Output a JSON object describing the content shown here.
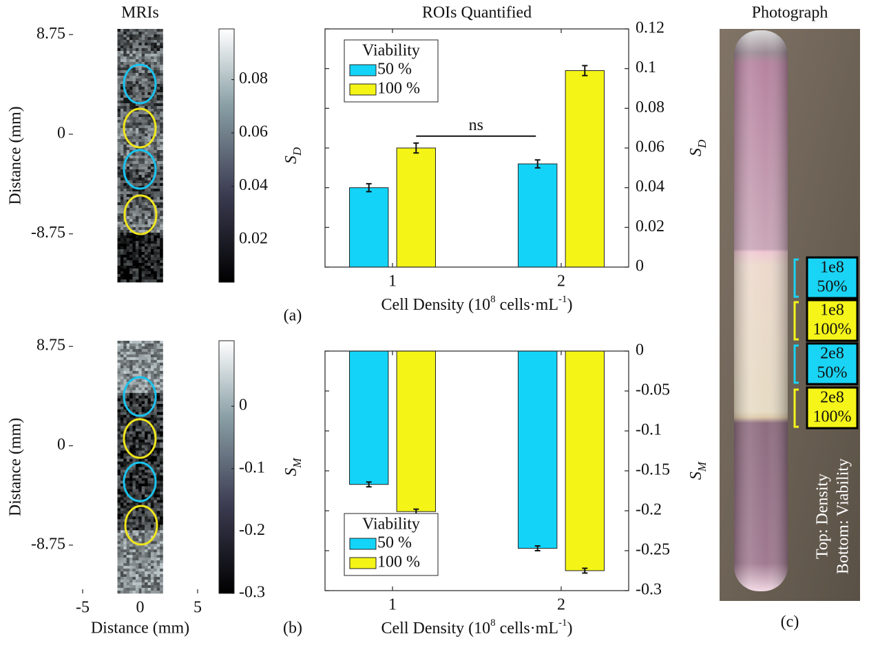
{
  "chart_data": [
    {
      "type": "image",
      "title": "MRIs",
      "ylabel": "Distance (mm)",
      "xlim": [
        -6.2,
        6.2
      ],
      "ylim": [
        -13,
        9.25
      ],
      "yticks": [
        8.75,
        0,
        -8.75
      ],
      "roi_colors": [
        "#19c3ef",
        "#f0e61c",
        "#19c3ef",
        "#f0e61c"
      ],
      "colorbar": {
        "label": "S",
        "label_sub": "D",
        "clim": [
          0.004,
          0.099
        ],
        "ticks": [
          0.02,
          0.04,
          0.06,
          0.08
        ]
      }
    },
    {
      "type": "bar",
      "title": "ROIs Quantified",
      "xlabel": [
        "Cell Density (10",
        "8",
        " cells·mL",
        "-1",
        ")"
      ],
      "x": [
        1,
        2
      ],
      "xlim": [
        0.6,
        2.4
      ],
      "xticks": [
        1,
        2
      ],
      "ylim": [
        0,
        0.12
      ],
      "yticks": [
        0,
        0.02,
        0.04,
        0.06,
        0.08,
        0.1,
        0.12
      ],
      "ylabel": "S",
      "ylabel_sub": "D",
      "legend": "upper-left",
      "legend_title": "Viability",
      "annotation": "ns",
      "panel_label": "(a)",
      "series": [
        {
          "name": "50 %",
          "color": "#13d4f8",
          "values": [
            0.04,
            0.052
          ],
          "errors": [
            0.002,
            0.002
          ]
        },
        {
          "name": "100 %",
          "color": "#f4f417",
          "values": [
            0.06,
            0.099
          ],
          "errors": [
            0.0025,
            0.0025
          ]
        }
      ]
    },
    {
      "type": "image",
      "ylabel": "Distance (mm)",
      "xlabel": "Distance (mm)",
      "xlim": [
        -6.2,
        6.2
      ],
      "xticks": [
        -5,
        0,
        5
      ],
      "ylim": [
        -13,
        9.25
      ],
      "yticks": [
        8.75,
        0,
        -8.75
      ],
      "roi_colors": [
        "#19c3ef",
        "#f0e61c",
        "#19c3ef",
        "#f0e61c"
      ],
      "colorbar": {
        "label": "S",
        "label_sub": "M",
        "clim": [
          -0.3,
          0.105
        ],
        "ticks": [
          -0.3,
          -0.2,
          -0.1,
          0
        ]
      }
    },
    {
      "type": "bar",
      "xlabel": [
        "Cell Density (10",
        "8",
        " cells·mL",
        "-1",
        ")"
      ],
      "x": [
        1,
        2
      ],
      "xlim": [
        0.6,
        2.4
      ],
      "xticks": [
        1,
        2
      ],
      "ylim": [
        -0.3,
        0
      ],
      "yticks": [
        0,
        -0.05,
        -0.1,
        -0.15,
        -0.2,
        -0.25,
        -0.3
      ],
      "ylabel": "S",
      "ylabel_sub": "M",
      "legend": "lower-left",
      "legend_title": "Viability",
      "panel_label": "(b)",
      "series": [
        {
          "name": "50 %",
          "color": "#13d4f8",
          "values": [
            -0.167,
            -0.247
          ],
          "errors": [
            0.003,
            0.003
          ]
        },
        {
          "name": "100 %",
          "color": "#f4f417",
          "values": [
            -0.201,
            -0.275
          ],
          "errors": [
            0.003,
            0.003
          ]
        }
      ]
    }
  ],
  "photograph": {
    "title": "Photograph",
    "panel_label": "(c)",
    "labels": [
      {
        "lines": [
          "1e8",
          "50%"
        ],
        "color": "#1ad4f5"
      },
      {
        "lines": [
          "1e8",
          "100%"
        ],
        "color": "#f5f51a"
      },
      {
        "lines": [
          "2e8",
          "50%"
        ],
        "color": "#1ad4f5"
      },
      {
        "lines": [
          "2e8",
          "100%"
        ],
        "color": "#f5f51a"
      }
    ],
    "caption": [
      "Top: Density",
      "Bottom: Viability"
    ]
  }
}
